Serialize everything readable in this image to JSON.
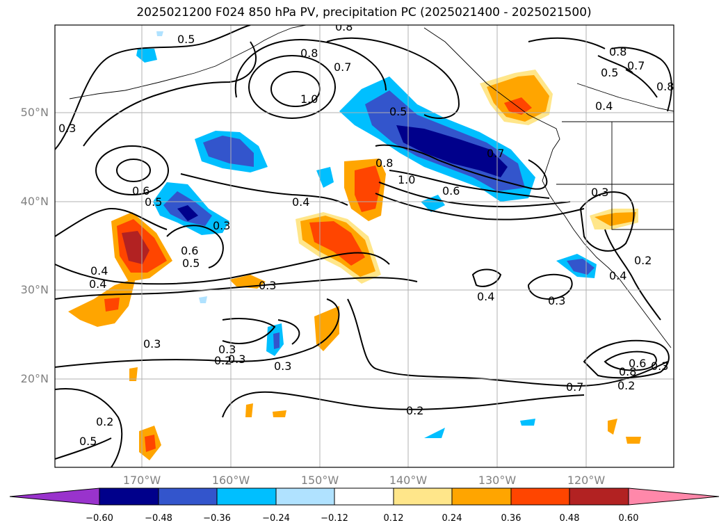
{
  "title": "2025021200 F024 850 hPa PV, precipitation PC (2025021400 - 2025021500)",
  "lat_labels": [
    "50°N",
    "40°N",
    "30°N",
    "20°N"
  ],
  "lon_labels": [
    "170°W",
    "160°W",
    "150°W",
    "140°W",
    "130°W",
    "120°W"
  ],
  "colorbar": {
    "tick_labels": [
      "−0.60",
      "−0.48",
      "−0.36",
      "−0.24",
      "−0.12",
      "0.12",
      "0.24",
      "0.36",
      "0.48",
      "0.60"
    ],
    "colors": [
      "#9933cc",
      "#00008b",
      "#3355cc",
      "#00bfff",
      "#b0e2ff",
      "#ffffff",
      "#ffe68a",
      "#ffa500",
      "#ff4500",
      "#b22222",
      "#ff88aa"
    ]
  },
  "contour_labels": [
    "0.5",
    "0.8",
    "0.8",
    "0.8",
    "0.7",
    "0.5",
    "0.8",
    "1.0",
    "0.7",
    "0.5",
    "0.4",
    "0.3",
    "0.6",
    "0.5",
    "0.4",
    "0.3",
    "0.6",
    "0.5",
    "0.8",
    "1.0",
    "0.6",
    "0.7",
    "0.4",
    "0.3",
    "0.3",
    "0.4",
    "0.3",
    "0.4",
    "0.2",
    "0.3",
    "0.3",
    "0.3",
    "0.2",
    "0.2",
    "0.2",
    "0.5",
    "0.7",
    "0.8",
    "0.6",
    "0.3",
    "0.3",
    "0.2",
    "0.4"
  ]
}
